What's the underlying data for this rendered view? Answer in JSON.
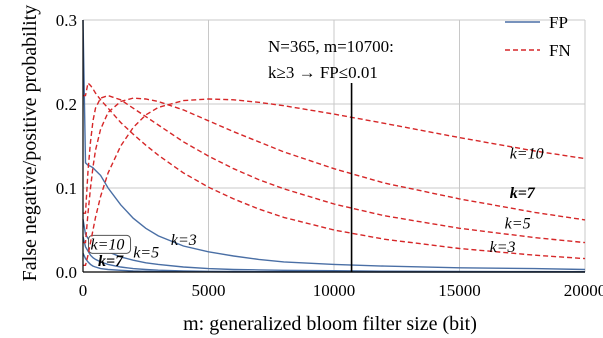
{
  "chart_data": {
    "type": "line",
    "xlabel": "m: generalized bloom filter size (bit)",
    "ylabel": "False negative/positive probability",
    "xlim": [
      0,
      20000
    ],
    "ylim": [
      0,
      0.3
    ],
    "xticks": [
      "0",
      "5000",
      "10000",
      "15000",
      "20000"
    ],
    "yticks": [
      "0.0",
      "0.1",
      "0.2",
      "0.3"
    ],
    "grid": true,
    "legend": {
      "position": "top-right",
      "entries": [
        {
          "label": "FP",
          "color": "#4a6fa5",
          "style": "solid"
        },
        {
          "label": "FN",
          "color": "#d62728",
          "style": "dashed"
        }
      ]
    },
    "annotation": {
      "line1": "N=365, m=10700:",
      "line2": "k≥3 → FP≤0.01",
      "x": 10700
    },
    "x": [
      100,
      200,
      300,
      400,
      500,
      700,
      1000,
      1500,
      2000,
      2500,
      3000,
      4000,
      5000,
      6000,
      7000,
      8000,
      10000,
      12000,
      15000,
      18000,
      20000
    ],
    "series": [
      {
        "name": "FP",
        "k": 3,
        "label": "k=3",
        "label_bold": false,
        "label_x": 3500,
        "label_y": 0.032,
        "values": [
          0.13,
          0.127,
          0.126,
          0.124,
          0.121,
          0.115,
          0.1,
          0.08,
          0.064,
          0.052,
          0.043,
          0.031,
          0.024,
          0.019,
          0.015,
          0.012,
          0.009,
          0.007,
          0.005,
          0.004,
          0.003
        ]
      },
      {
        "name": "FP",
        "k": 5,
        "label": "k=5",
        "label_bold": false,
        "label_x": 2000,
        "label_y": 0.017,
        "values": [
          0.045,
          0.04,
          0.036,
          0.033,
          0.031,
          0.028,
          0.024,
          0.018,
          0.014,
          0.011,
          0.009,
          0.006,
          0.004,
          0.003,
          0.0025,
          0.002,
          0.0015,
          0.001,
          0.0007,
          0.0005,
          0.0004
        ]
      },
      {
        "name": "FP",
        "k": 7,
        "label": "k=7",
        "label_bold": true,
        "label_x": 600,
        "label_y": 0.007,
        "values": [
          0.03,
          0.025,
          0.02,
          0.017,
          0.015,
          0.012,
          0.009,
          0.006,
          0.004,
          0.003,
          0.0022,
          0.0013,
          0.0008,
          0.0006,
          0.0004,
          0.0003,
          0.0002,
          0.0001,
          0.0001,
          0.0001,
          0.0001
        ]
      },
      {
        "name": "FP",
        "k": 10,
        "label": "k=10",
        "label_bold": false,
        "label_x": 300,
        "label_y": 0.027,
        "values": [
          0.016,
          0.012,
          0.009,
          0.007,
          0.006,
          0.004,
          0.003,
          0.002,
          0.0012,
          0.0008,
          0.0005,
          0.0003,
          0.0002,
          0.0001,
          0.0001,
          0.0001,
          0.0001,
          0.0001,
          0.0001,
          0.0001,
          0.0001
        ]
      },
      {
        "name": "FN",
        "k": 3,
        "label": "k=3",
        "label_bold": false,
        "label_x": 16200,
        "label_y": 0.024,
        "values": [
          0.21,
          0.225,
          0.222,
          0.218,
          0.213,
          0.205,
          0.195,
          0.178,
          0.164,
          0.151,
          0.139,
          0.118,
          0.101,
          0.087,
          0.075,
          0.065,
          0.05,
          0.039,
          0.028,
          0.02,
          0.016
        ]
      },
      {
        "name": "FN",
        "k": 5,
        "label": "k=5",
        "label_bold": false,
        "label_x": 16800,
        "label_y": 0.052,
        "values": [
          0.07,
          0.12,
          0.155,
          0.18,
          0.195,
          0.207,
          0.21,
          0.205,
          0.195,
          0.185,
          0.175,
          0.155,
          0.138,
          0.123,
          0.11,
          0.099,
          0.081,
          0.067,
          0.052,
          0.041,
          0.035
        ]
      },
      {
        "name": "FN",
        "k": 7,
        "label": "k=7",
        "label_bold": true,
        "label_x": 17000,
        "label_y": 0.088,
        "values": [
          0.035,
          0.07,
          0.1,
          0.125,
          0.145,
          0.17,
          0.19,
          0.203,
          0.207,
          0.206,
          0.203,
          0.193,
          0.18,
          0.167,
          0.155,
          0.143,
          0.123,
          0.106,
          0.087,
          0.071,
          0.062
        ]
      },
      {
        "name": "FN",
        "k": 10,
        "label": "k=10",
        "label_bold": false,
        "label_x": 17000,
        "label_y": 0.135,
        "values": [
          0.008,
          0.02,
          0.035,
          0.05,
          0.065,
          0.09,
          0.118,
          0.15,
          0.172,
          0.187,
          0.196,
          0.204,
          0.206,
          0.205,
          0.202,
          0.198,
          0.188,
          0.177,
          0.16,
          0.144,
          0.135
        ]
      }
    ]
  }
}
